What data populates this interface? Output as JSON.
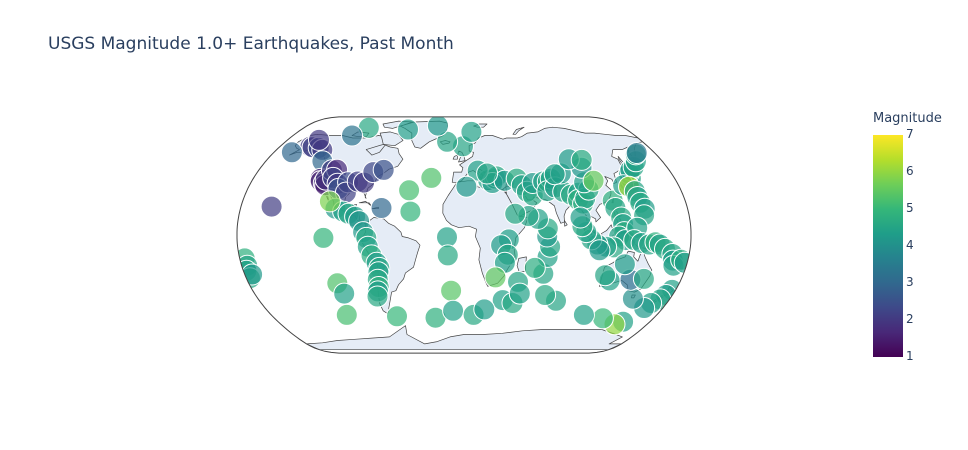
{
  "chart_data": {
    "type": "scatter_geo",
    "title": "USGS Magnitude 1.0+ Earthquakes, Past Month",
    "projection": "natural earth",
    "colorscale": "Viridis",
    "colorbar": {
      "title": "Magnitude",
      "range": [
        1,
        7
      ],
      "ticks": [
        "1",
        "2",
        "3",
        "4",
        "5",
        "6",
        "7"
      ]
    },
    "points": [
      {
        "lon": -155.3,
        "lat": 19.4,
        "mag": 2.1
      },
      {
        "lon": -150.1,
        "lat": 61.2,
        "mag": 2.0
      },
      {
        "lon": -147.5,
        "lat": 60.8,
        "mag": 2.2
      },
      {
        "lon": -141.0,
        "lat": 60.3,
        "mag": 2.4
      },
      {
        "lon": -136.0,
        "lat": 58.8,
        "mag": 2.0
      },
      {
        "lon": -128.5,
        "lat": 50.5,
        "mag": 3.0
      },
      {
        "lon": -122.5,
        "lat": 38.3,
        "mag": 1.5
      },
      {
        "lon": -121.5,
        "lat": 36.8,
        "mag": 1.6
      },
      {
        "lon": -118.3,
        "lat": 35.5,
        "mag": 1.8
      },
      {
        "lon": -116.5,
        "lat": 34.0,
        "mag": 1.5
      },
      {
        "lon": -117.8,
        "lat": 37.8,
        "mag": 1.9
      },
      {
        "lon": -115.8,
        "lat": 44.2,
        "mag": 2.1
      },
      {
        "lon": -111.5,
        "lat": 44.6,
        "mag": 1.7
      },
      {
        "lon": -112.0,
        "lat": 39.0,
        "mag": 2.3
      },
      {
        "lon": -106.5,
        "lat": 35.0,
        "mag": 2.0
      },
      {
        "lon": -104.5,
        "lat": 31.5,
        "mag": 2.6
      },
      {
        "lon": -98.0,
        "lat": 36.0,
        "mag": 2.4
      },
      {
        "lon": -97.5,
        "lat": 29.0,
        "mag": 2.2
      },
      {
        "lon": -90.0,
        "lat": 36.5,
        "mag": 2.1
      },
      {
        "lon": -84.5,
        "lat": 35.8,
        "mag": 2.0
      },
      {
        "lon": -79.0,
        "lat": 43.0,
        "mag": 2.3
      },
      {
        "lon": -70.5,
        "lat": 44.5,
        "mag": 2.5
      },
      {
        "lon": -66.5,
        "lat": 18.5,
        "mag": 3.0
      },
      {
        "lon": -103.5,
        "lat": 18.0,
        "mag": 4.2
      },
      {
        "lon": -97.0,
        "lat": 16.0,
        "mag": 4.4
      },
      {
        "lon": -92.5,
        "lat": 14.5,
        "mag": 4.5
      },
      {
        "lon": -87.0,
        "lat": 12.5,
        "mag": 4.3
      },
      {
        "lon": -83.5,
        "lat": 9.5,
        "mag": 4.1
      },
      {
        "lon": -109.0,
        "lat": 23.0,
        "mag": 5.8
      },
      {
        "lon": -80.0,
        "lat": 2.0,
        "mag": 4.2
      },
      {
        "lon": -77.5,
        "lat": -2.0,
        "mag": 4.6
      },
      {
        "lon": -76.5,
        "lat": -8.0,
        "mag": 4.4
      },
      {
        "lon": -74.0,
        "lat": -14.0,
        "mag": 4.7
      },
      {
        "lon": -70.5,
        "lat": -19.0,
        "mag": 4.3
      },
      {
        "lon": -68.8,
        "lat": -22.5,
        "mag": 4.5
      },
      {
        "lon": -70.0,
        "lat": -25.5,
        "mag": 4.4
      },
      {
        "lon": -71.5,
        "lat": -30.5,
        "mag": 4.6
      },
      {
        "lon": -72.0,
        "lat": -35.5,
        "mag": 4.8
      },
      {
        "lon": -73.5,
        "lat": -38.5,
        "mag": 4.3
      },
      {
        "lon": -75.0,
        "lat": -42.0,
        "mag": 4.6
      },
      {
        "lon": -111.5,
        "lat": -2.0,
        "mag": 4.9
      },
      {
        "lon": -106.0,
        "lat": -33.0,
        "mag": 5.3
      },
      {
        "lon": -103.0,
        "lat": -40.0,
        "mag": 4.4
      },
      {
        "lon": -109.5,
        "lat": -55.0,
        "mag": 5.2
      },
      {
        "lon": -63.0,
        "lat": -56.0,
        "mag": 5.0
      },
      {
        "lon": -27.0,
        "lat": -57.0,
        "mag": 4.8
      },
      {
        "lon": -45.5,
        "lat": 30.5,
        "mag": 5.2
      },
      {
        "lon": -28.0,
        "lat": 39.0,
        "mag": 5.3
      },
      {
        "lon": -43.0,
        "lat": 16.0,
        "mag": 4.9
      },
      {
        "lon": -13.5,
        "lat": -1.5,
        "mag": 4.4
      },
      {
        "lon": -13.0,
        "lat": -14.0,
        "mag": 4.6
      },
      {
        "lon": -11.0,
        "lat": -38.0,
        "mag": 5.4
      },
      {
        "lon": -10.0,
        "lat": -52.0,
        "mag": 4.4
      },
      {
        "lon": 20.5,
        "lat": 37.5,
        "mag": 4.4
      },
      {
        "lon": 26.5,
        "lat": 38.5,
        "mag": 4.5
      },
      {
        "lon": 28.0,
        "lat": 40.0,
        "mag": 4.6
      },
      {
        "lon": 24.0,
        "lat": 35.5,
        "mag": 4.3
      },
      {
        "lon": 34.5,
        "lat": 37.0,
        "mag": 4.2
      },
      {
        "lon": 45.0,
        "lat": 38.5,
        "mag": 4.7
      },
      {
        "lon": 48.5,
        "lat": 34.0,
        "mag": 4.4
      },
      {
        "lon": 52.0,
        "lat": 29.5,
        "mag": 4.5
      },
      {
        "lon": 56.5,
        "lat": 27.0,
        "mag": 4.6
      },
      {
        "lon": 58.0,
        "lat": 35.5,
        "mag": 4.3
      },
      {
        "lon": 67.0,
        "lat": 36.5,
        "mag": 4.4
      },
      {
        "lon": 71.0,
        "lat": 36.5,
        "mag": 4.7
      },
      {
        "lon": 74.0,
        "lat": 38.5,
        "mag": 4.4
      },
      {
        "lon": 69.0,
        "lat": 30.0,
        "mag": 4.5
      },
      {
        "lon": 76.0,
        "lat": 32.5,
        "mag": 4.3
      },
      {
        "lon": 82.0,
        "lat": 29.5,
        "mag": 4.5
      },
      {
        "lon": 88.0,
        "lat": 27.5,
        "mag": 4.6
      },
      {
        "lon": 94.5,
        "lat": 29.0,
        "mag": 4.4
      },
      {
        "lon": 93.0,
        "lat": 24.0,
        "mag": 4.8
      },
      {
        "lon": 96.5,
        "lat": 21.5,
        "mag": 4.7
      },
      {
        "lon": 99.0,
        "lat": 25.0,
        "mag": 4.5
      },
      {
        "lon": 103.5,
        "lat": 31.0,
        "mag": 4.6
      },
      {
        "lon": 101.5,
        "lat": 36.0,
        "mag": 4.4
      },
      {
        "lon": 84.0,
        "lat": 42.0,
        "mag": 4.3
      },
      {
        "lon": 78.5,
        "lat": 41.5,
        "mag": 4.4
      },
      {
        "lon": 104.0,
        "lat": 46.0,
        "mag": 4.2
      },
      {
        "lon": 96.0,
        "lat": 52.0,
        "mag": 4.3
      },
      {
        "lon": 107.5,
        "lat": 51.5,
        "mag": 4.7
      },
      {
        "lon": 110.0,
        "lat": 37.0,
        "mag": 5.6
      },
      {
        "lon": 121.0,
        "lat": 23.5,
        "mag": 4.8
      },
      {
        "lon": 122.0,
        "lat": 18.5,
        "mag": 4.5
      },
      {
        "lon": 125.5,
        "lat": 12.0,
        "mag": 4.6
      },
      {
        "lon": 126.5,
        "lat": 7.5,
        "mag": 4.4
      },
      {
        "lon": 127.0,
        "lat": 2.0,
        "mag": 4.7
      },
      {
        "lon": 123.0,
        "lat": -1.0,
        "mag": 4.5
      },
      {
        "lon": 128.0,
        "lat": -3.5,
        "mag": 4.3
      },
      {
        "lon": 119.0,
        "lat": -8.5,
        "mag": 4.6
      },
      {
        "lon": 113.0,
        "lat": -8.0,
        "mag": 4.4
      },
      {
        "lon": 106.0,
        "lat": -6.5,
        "mag": 4.3
      },
      {
        "lon": 101.0,
        "lat": -3.0,
        "mag": 4.5
      },
      {
        "lon": 97.0,
        "lat": 2.0,
        "mag": 4.4
      },
      {
        "lon": 94.0,
        "lat": 6.0,
        "mag": 4.6
      },
      {
        "lon": 93.0,
        "lat": 12.0,
        "mag": 4.3
      },
      {
        "lon": 108.0,
        "lat": -10.5,
        "mag": 4.2
      },
      {
        "lon": 140.0,
        "lat": 36.0,
        "mag": 4.6
      },
      {
        "lon": 142.5,
        "lat": 38.5,
        "mag": 4.5
      },
      {
        "lon": 143.0,
        "lat": 42.0,
        "mag": 4.4
      },
      {
        "lon": 146.0,
        "lat": 44.5,
        "mag": 4.3
      },
      {
        "lon": 150.5,
        "lat": 46.5,
        "mag": 4.5
      },
      {
        "lon": 156.0,
        "lat": 50.5,
        "mag": 4.4
      },
      {
        "lon": 161.0,
        "lat": 55.5,
        "mag": 4.6
      },
      {
        "lon": 163.0,
        "lat": 56.5,
        "mag": 3.4
      },
      {
        "lon": 133.5,
        "lat": 34.0,
        "mag": 4.3
      },
      {
        "lon": 138.0,
        "lat": 33.0,
        "mag": 6.2
      },
      {
        "lon": 141.5,
        "lat": 30.0,
        "mag": 4.5
      },
      {
        "lon": 142.0,
        "lat": 26.0,
        "mag": 4.4
      },
      {
        "lon": 143.0,
        "lat": 22.0,
        "mag": 4.6
      },
      {
        "lon": 145.5,
        "lat": 18.0,
        "mag": 4.3
      },
      {
        "lon": 144.0,
        "lat": 13.5,
        "mag": 4.5
      },
      {
        "lon": 137.5,
        "lat": 5.0,
        "mag": 4.4
      },
      {
        "lon": 135.0,
        "lat": -3.5,
        "mag": 4.6
      },
      {
        "lon": 141.0,
        "lat": -5.5,
        "mag": 4.4
      },
      {
        "lon": 147.0,
        "lat": -6.5,
        "mag": 4.5
      },
      {
        "lon": 152.0,
        "lat": -5.0,
        "mag": 4.8
      },
      {
        "lon": 155.5,
        "lat": -6.5,
        "mag": 4.4
      },
      {
        "lon": 160.0,
        "lat": -9.5,
        "mag": 4.6
      },
      {
        "lon": 166.5,
        "lat": -13.0,
        "mag": 4.5
      },
      {
        "lon": 168.0,
        "lat": -17.5,
        "mag": 4.3
      },
      {
        "lon": 169.5,
        "lat": -21.0,
        "mag": 4.4
      },
      {
        "lon": 174.5,
        "lat": -17.0,
        "mag": 4.7
      },
      {
        "lon": 178.0,
        "lat": -19.0,
        "mag": 4.3
      },
      {
        "lon": -176.0,
        "lat": -16.0,
        "mag": 4.8
      },
      {
        "lon": -175.5,
        "lat": -21.0,
        "mag": 4.5
      },
      {
        "lon": -177.5,
        "lat": -24.5,
        "mag": 4.4
      },
      {
        "lon": -177.0,
        "lat": -29.5,
        "mag": 4.6
      },
      {
        "lon": -174.0,
        "lat": -27.0,
        "mag": 4.2
      },
      {
        "lon": 177.0,
        "lat": -37.5,
        "mag": 4.4
      },
      {
        "lon": 174.5,
        "lat": -41.0,
        "mag": 4.3
      },
      {
        "lon": 172.0,
        "lat": -44.0,
        "mag": 4.5
      },
      {
        "lon": 166.0,
        "lat": -46.5,
        "mag": 4.4
      },
      {
        "lon": 163.0,
        "lat": -50.0,
        "mag": 4.2
      },
      {
        "lon": 147.5,
        "lat": -43.5,
        "mag": 4.0
      },
      {
        "lon": 138.0,
        "lat": -30.5,
        "mag": 3.2
      },
      {
        "lon": 149.0,
        "lat": -30.0,
        "mag": 4.6
      },
      {
        "lon": 130.0,
        "lat": -20.0,
        "mag": 4.3
      },
      {
        "lon": 121.0,
        "lat": -31.0,
        "mag": 4.4
      },
      {
        "lon": 116.0,
        "lat": -27.5,
        "mag": 4.5
      },
      {
        "lon": 154.0,
        "lat": -60.0,
        "mag": 4.4
      },
      {
        "lon": 148.0,
        "lat": -62.0,
        "mag": 6.0
      },
      {
        "lon": 132.0,
        "lat": -57.5,
        "mag": 5.0
      },
      {
        "lon": 112.0,
        "lat": -55.0,
        "mag": 4.4
      },
      {
        "lon": 81.0,
        "lat": -45.0,
        "mag": 4.5
      },
      {
        "lon": 70.0,
        "lat": -41.0,
        "mag": 4.6
      },
      {
        "lon": 65.0,
        "lat": -26.5,
        "mag": 4.5
      },
      {
        "lon": 67.0,
        "lat": -15.0,
        "mag": 4.4
      },
      {
        "lon": 68.5,
        "lat": -8.0,
        "mag": 4.5
      },
      {
        "lon": 66.0,
        "lat": -1.0,
        "mag": 4.2
      },
      {
        "lon": 66.5,
        "lat": 4.5,
        "mag": 4.6
      },
      {
        "lon": 59.0,
        "lat": 11.0,
        "mag": 4.4
      },
      {
        "lon": 51.5,
        "lat": 13.0,
        "mag": 4.5
      },
      {
        "lon": 41.0,
        "lat": 14.5,
        "mag": 4.6
      },
      {
        "lon": 57.5,
        "lat": -22.5,
        "mag": 4.7
      },
      {
        "lon": 35.5,
        "lat": -3.0,
        "mag": 4.4
      },
      {
        "lon": 29.5,
        "lat": -7.0,
        "mag": 4.3
      },
      {
        "lon": 35.0,
        "lat": -13.5,
        "mag": 4.5
      },
      {
        "lon": 33.0,
        "lat": -19.0,
        "mag": 4.4
      },
      {
        "lon": 26.0,
        "lat": -29.0,
        "mag": 5.5
      },
      {
        "lon": 45.0,
        "lat": -32.0,
        "mag": 4.5
      },
      {
        "lon": 34.0,
        "lat": -44.5,
        "mag": 4.4
      },
      {
        "lon": 43.0,
        "lat": -46.5,
        "mag": 4.6
      },
      {
        "lon": 48.0,
        "lat": -40.0,
        "mag": 4.4
      },
      {
        "lon": 9.0,
        "lat": -55.0,
        "mag": 4.6
      },
      {
        "lon": 18.5,
        "lat": -51.0,
        "mag": 4.3
      },
      {
        "lon": -1.0,
        "lat": 61.5,
        "mag": 4.5
      },
      {
        "lon": 8.0,
        "lat": 73.0,
        "mag": 4.4
      },
      {
        "lon": -17.0,
        "lat": 65.0,
        "mag": 4.5
      },
      {
        "lon": -30.0,
        "lat": 78.5,
        "mag": 4.2
      },
      {
        "lon": 12.0,
        "lat": 44.0,
        "mag": 4.4
      },
      {
        "lon": 20.0,
        "lat": 42.0,
        "mag": 4.5
      },
      {
        "lon": 2.0,
        "lat": 33.0,
        "mag": 4.2
      },
      {
        "lon": -62.0,
        "lat": 75.0,
        "mag": 4.3
      },
      {
        "lon": -107.0,
        "lat": 76.5,
        "mag": 4.6
      },
      {
        "lon": -118.0,
        "lat": 70.0,
        "mag": 3.3
      },
      {
        "lon": -148.0,
        "lat": 66.5,
        "mag": 2.0
      },
      {
        "lon": -163.0,
        "lat": 57.0,
        "mag": 3.0
      }
    ]
  }
}
